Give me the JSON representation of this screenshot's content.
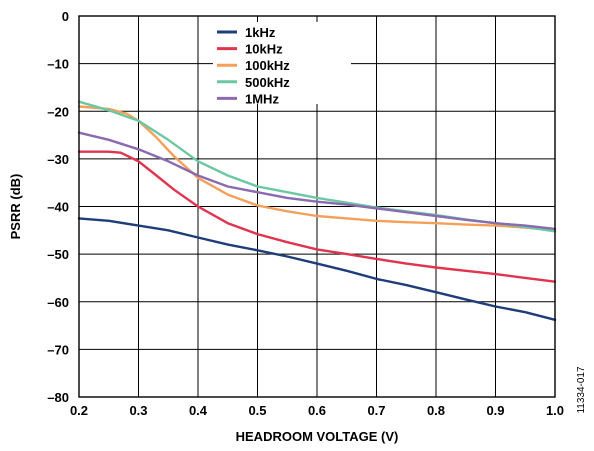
{
  "chart_data": {
    "type": "line",
    "title": "",
    "xlabel": "HEADROOM VOLTAGE (V)",
    "ylabel": "PSRR (dB)",
    "xlim": [
      0.2,
      1.0
    ],
    "ylim": [
      -80,
      0
    ],
    "x_ticks": [
      "0.2",
      "0.3",
      "0.4",
      "0.5",
      "0.6",
      "0.7",
      "0.8",
      "0.9",
      "1.0"
    ],
    "x_tick_values": [
      0.2,
      0.3,
      0.4,
      0.5,
      0.6,
      0.7,
      0.8,
      0.9,
      1.0
    ],
    "y_ticks": [
      "0",
      "–10",
      "–20",
      "–30",
      "–40",
      "–50",
      "–60",
      "–70",
      "–80"
    ],
    "y_tick_values": [
      0,
      -10,
      -20,
      -30,
      -40,
      -50,
      -60,
      -70,
      -80
    ],
    "grid": true,
    "legend_position": "top-center",
    "figure_id": "11334-017",
    "series": [
      {
        "name": "1kHz",
        "color": "#1f3d7a",
        "x": [
          0.2,
          0.25,
          0.3,
          0.35,
          0.4,
          0.45,
          0.5,
          0.55,
          0.6,
          0.65,
          0.7,
          0.75,
          0.8,
          0.85,
          0.9,
          0.95,
          1.0
        ],
        "y": [
          -42.5,
          -43,
          -44,
          -45,
          -46.5,
          -48,
          -49.2,
          -50.5,
          -52,
          -53.5,
          -55.2,
          -56.5,
          -58,
          -59.5,
          -61,
          -62.2,
          -63.8
        ]
      },
      {
        "name": "10kHz",
        "color": "#e0344f",
        "x": [
          0.2,
          0.22,
          0.25,
          0.27,
          0.3,
          0.33,
          0.36,
          0.4,
          0.45,
          0.5,
          0.55,
          0.6,
          0.65,
          0.7,
          0.75,
          0.8,
          0.85,
          0.9,
          0.95,
          1.0
        ],
        "y": [
          -28.5,
          -28.5,
          -28.5,
          -28.7,
          -30.5,
          -33.5,
          -36.5,
          -40,
          -43.5,
          -45.8,
          -47.5,
          -49,
          -50,
          -51,
          -52,
          -52.8,
          -53.5,
          -54.2,
          -55,
          -55.8
        ]
      },
      {
        "name": "100kHz",
        "color": "#f5a05a",
        "x": [
          0.2,
          0.25,
          0.28,
          0.3,
          0.33,
          0.36,
          0.4,
          0.45,
          0.5,
          0.55,
          0.6,
          0.65,
          0.7,
          0.75,
          0.8,
          0.85,
          0.9,
          0.95,
          1.0
        ],
        "y": [
          -19,
          -19.5,
          -20.5,
          -22,
          -25.5,
          -29.5,
          -34,
          -37.5,
          -39.8,
          -41,
          -42,
          -42.5,
          -43,
          -43.3,
          -43.5,
          -43.8,
          -44,
          -44.4,
          -45
        ]
      },
      {
        "name": "500kHz",
        "color": "#6cc7a3",
        "x": [
          0.2,
          0.25,
          0.3,
          0.35,
          0.4,
          0.45,
          0.5,
          0.55,
          0.6,
          0.65,
          0.7,
          0.75,
          0.8,
          0.85,
          0.9,
          0.95,
          1.0
        ],
        "y": [
          -18,
          -19.8,
          -22,
          -26,
          -30.5,
          -33.5,
          -35.8,
          -37,
          -38.2,
          -39.2,
          -40.2,
          -41,
          -41.8,
          -42.7,
          -43.5,
          -44.3,
          -45.2
        ]
      },
      {
        "name": "1MHz",
        "color": "#8a6bb0",
        "x": [
          0.2,
          0.25,
          0.3,
          0.35,
          0.4,
          0.45,
          0.5,
          0.55,
          0.6,
          0.65,
          0.7,
          0.75,
          0.8,
          0.85,
          0.9,
          0.95,
          1.0
        ],
        "y": [
          -24.5,
          -26,
          -28,
          -30.5,
          -33.5,
          -35.8,
          -37,
          -38.2,
          -39,
          -39.6,
          -40.4,
          -41.2,
          -42,
          -42.8,
          -43.5,
          -44,
          -44.7
        ]
      }
    ]
  }
}
